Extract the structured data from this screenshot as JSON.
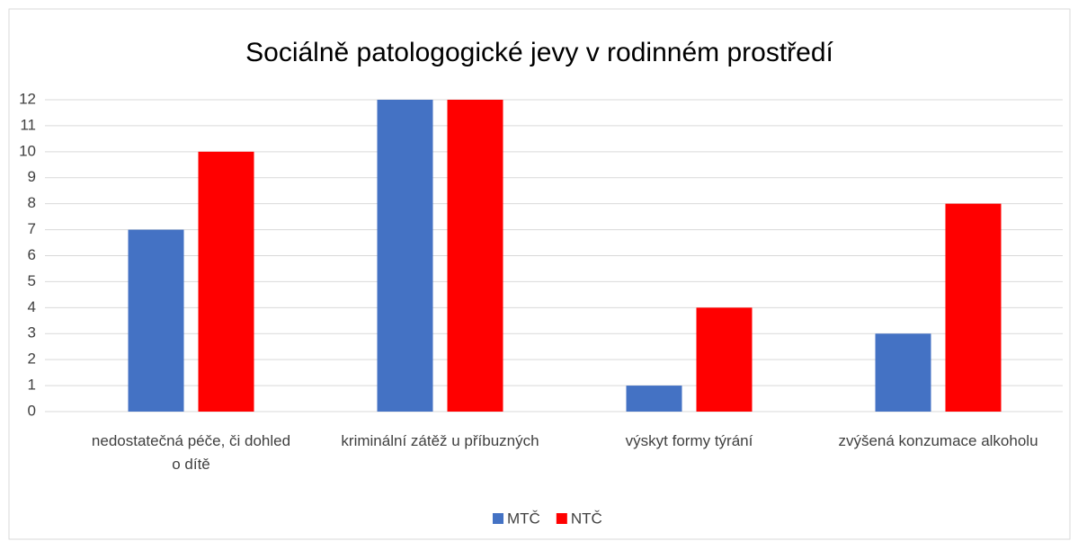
{
  "chart_data": {
    "type": "bar",
    "title": "Sociálně patologogické jevy v rodinném prostředí",
    "categories": [
      "nedostatečná péče, či dohled o dítě",
      "kriminální zátěž u příbuzných",
      "výskyt formy týrání",
      "zvýšená konzumace alkoholu"
    ],
    "series": [
      {
        "name": "MTČ",
        "color": "#4472c4",
        "values": [
          7,
          12,
          1,
          3
        ]
      },
      {
        "name": "NTČ",
        "color": "#ff0000",
        "values": [
          10,
          12,
          4,
          8
        ]
      }
    ],
    "ylim": [
      0,
      12
    ],
    "yticks": [
      0,
      1,
      2,
      3,
      4,
      5,
      6,
      7,
      8,
      9,
      10,
      11,
      12
    ],
    "grid": true,
    "legend": "bottom"
  }
}
